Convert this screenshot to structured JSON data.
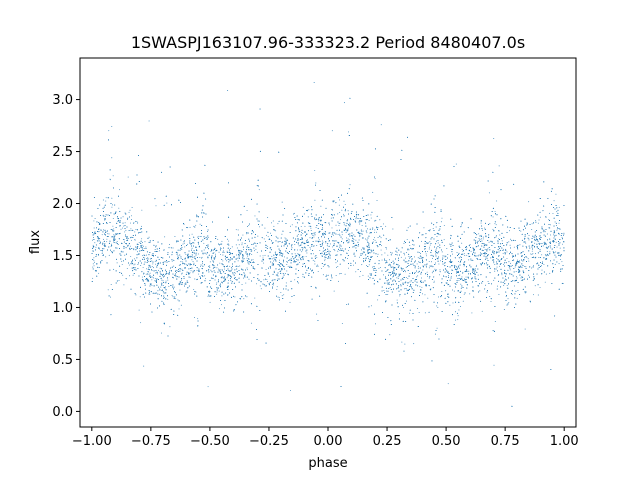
{
  "chart_data": {
    "type": "scatter",
    "title": "1SWASPJ163107.96-333323.2 Period 8480407.0s",
    "xlabel": "phase",
    "ylabel": "flux",
    "xlim": [
      -1.05,
      1.05
    ],
    "ylim": [
      -0.15,
      3.4
    ],
    "xticks": [
      -1.0,
      -0.75,
      -0.5,
      -0.25,
      0.0,
      0.25,
      0.5,
      0.75,
      1.0
    ],
    "xtick_labels": [
      "−1.00",
      "−0.75",
      "−0.50",
      "−0.25",
      "0.00",
      "0.25",
      "0.50",
      "0.75",
      "1.00"
    ],
    "yticks": [
      0.0,
      0.5,
      1.0,
      1.5,
      2.0,
      2.5,
      3.0
    ],
    "ytick_labels": [
      "0.0",
      "0.5",
      "1.0",
      "1.5",
      "2.0",
      "2.5",
      "3.0"
    ],
    "grid": false,
    "marker_color": "#1f77b4",
    "series": [
      {
        "profile_phase": [
          0.0,
          0.05,
          0.1,
          0.15,
          0.2,
          0.25,
          0.3,
          0.35,
          0.4,
          0.45,
          0.5,
          0.55,
          0.6,
          0.65,
          0.7,
          0.75,
          0.8,
          0.85,
          0.9,
          0.95,
          1.0
        ],
        "profile_mean_flux": [
          1.6,
          1.7,
          1.7,
          1.65,
          1.55,
          1.35,
          1.3,
          1.35,
          1.45,
          1.5,
          1.4,
          1.35,
          1.4,
          1.5,
          1.55,
          1.45,
          1.4,
          1.5,
          1.6,
          1.65,
          1.6
        ],
        "point_count": 9000,
        "flux_range": [
          0.0,
          3.25
        ]
      }
    ]
  }
}
